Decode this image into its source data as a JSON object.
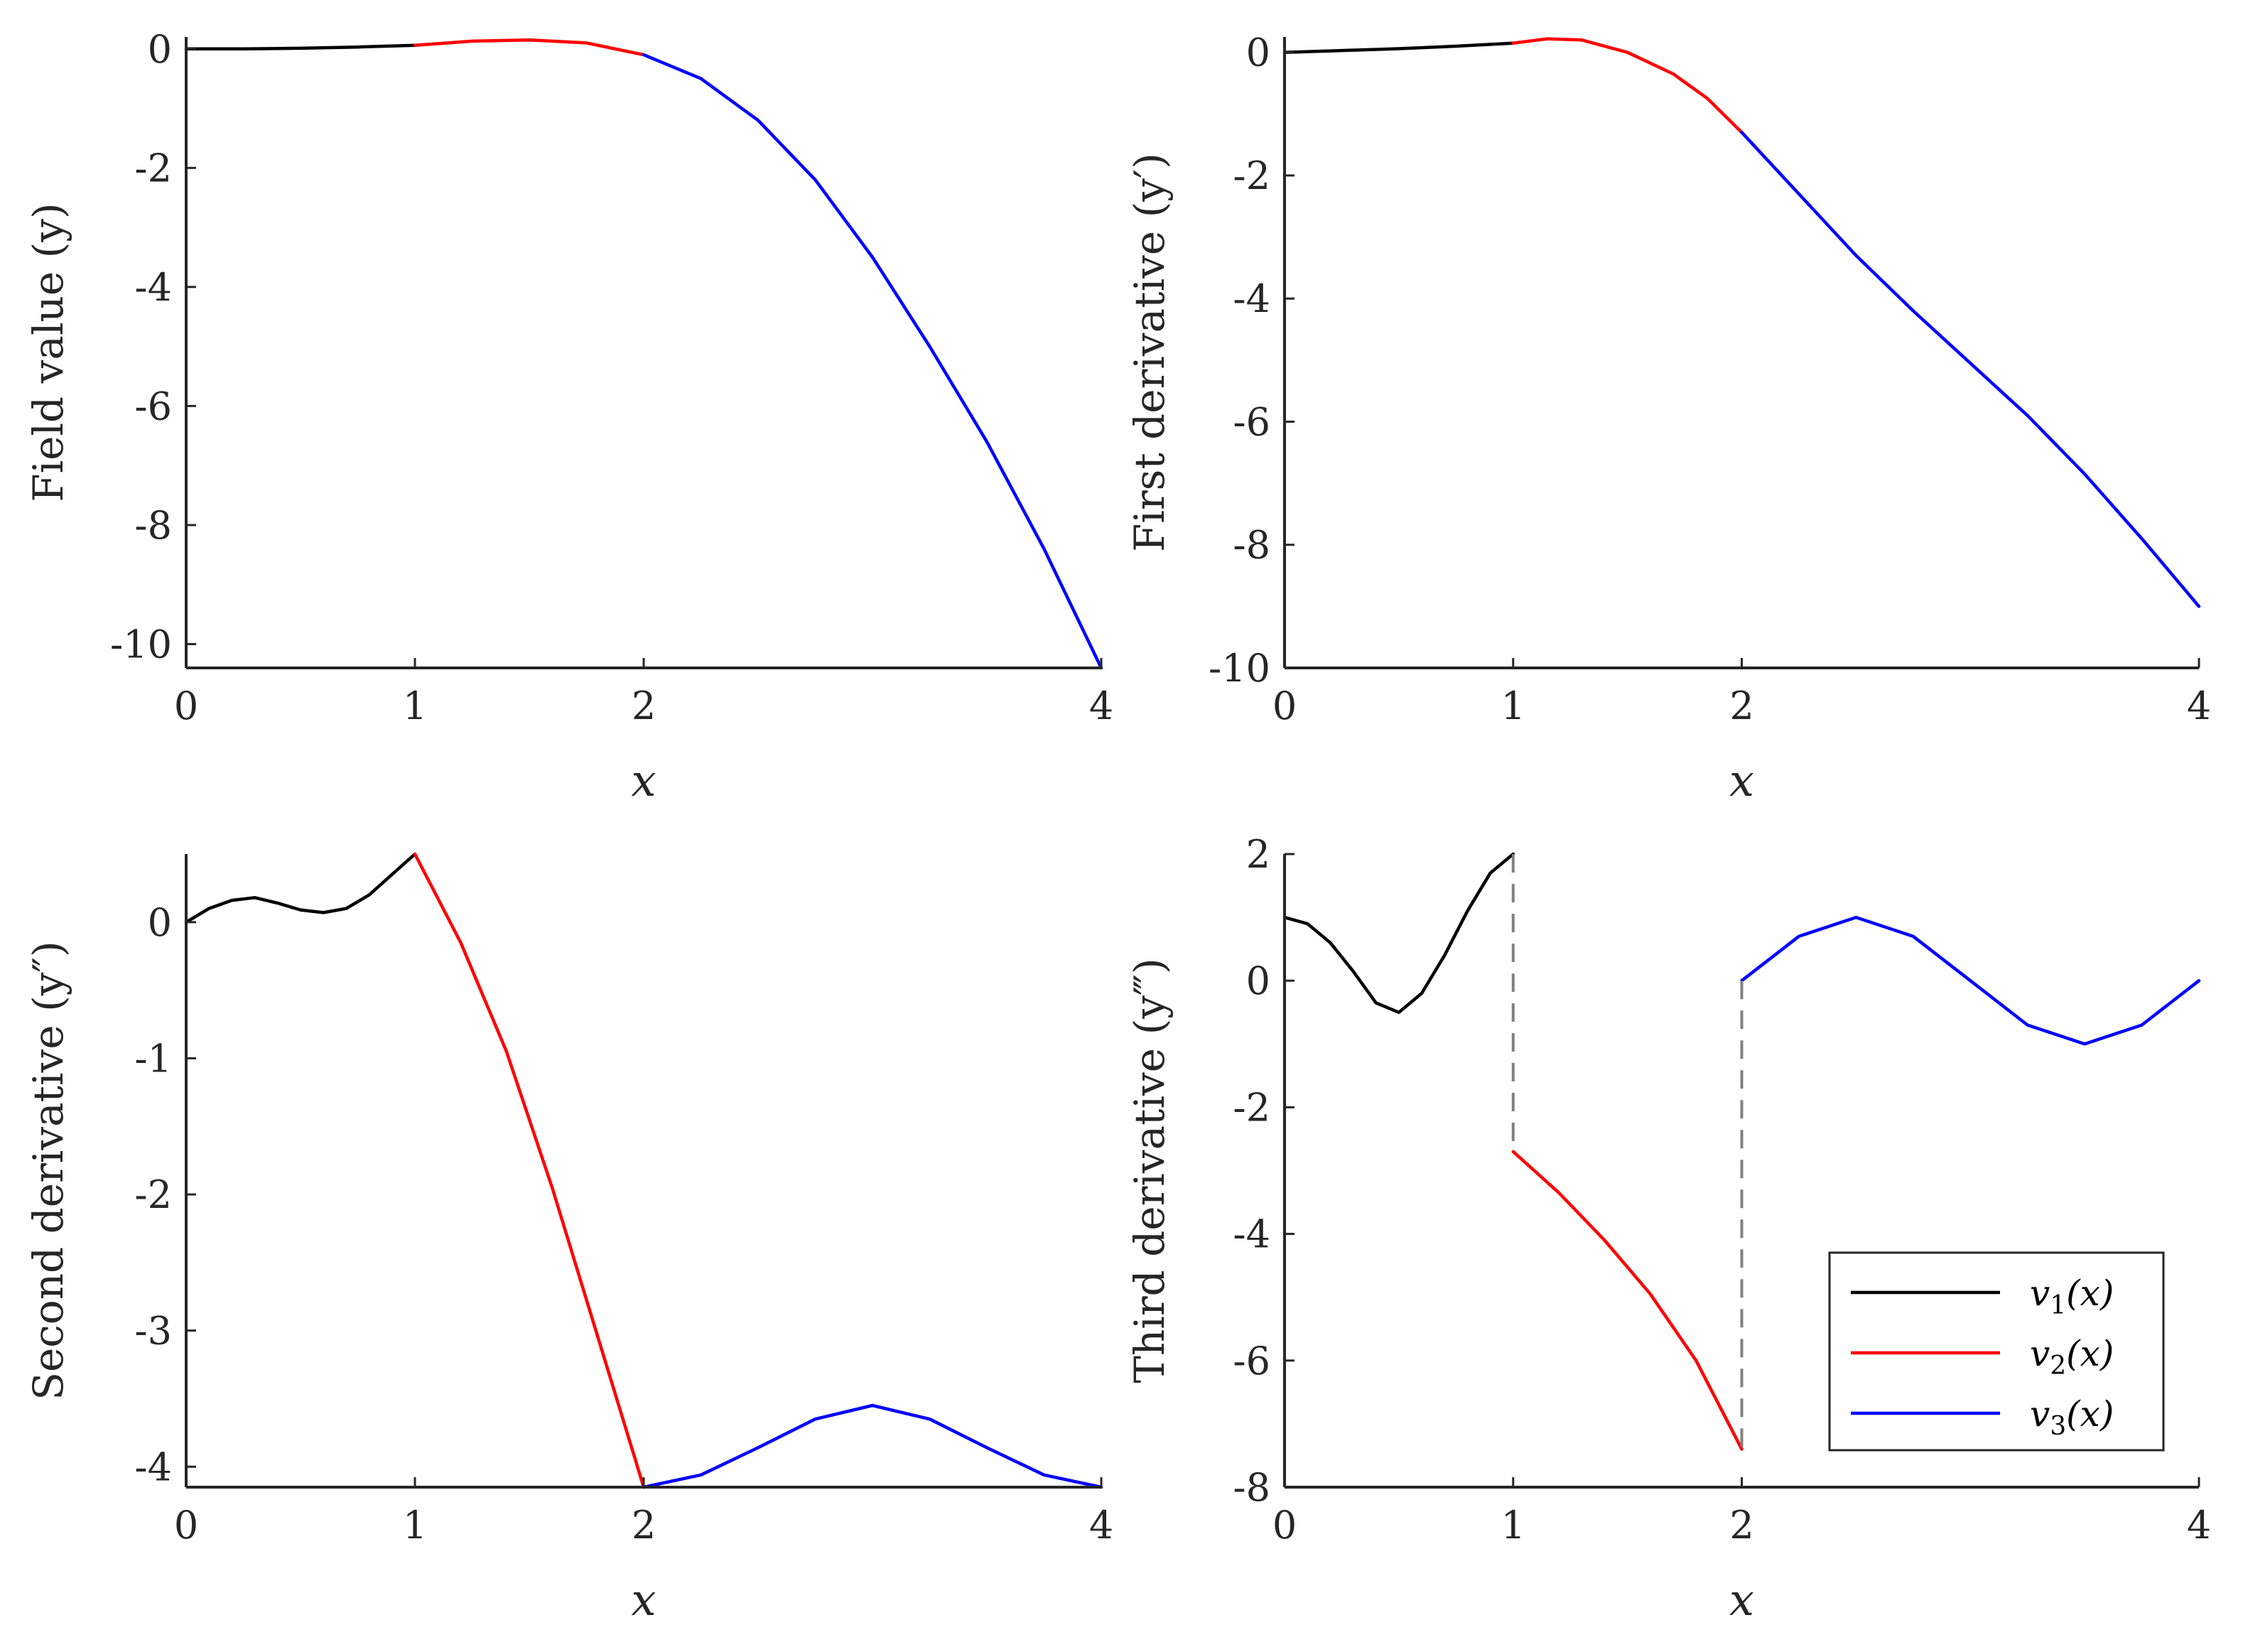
{
  "chart_data": [
    {
      "type": "line",
      "panel": "top-left",
      "xlabel": "x",
      "ylabel": "Field value (y)",
      "xlim": [
        0,
        4
      ],
      "ylim": [
        -10.4,
        0.2
      ],
      "xticks": [
        0,
        1,
        2,
        4
      ],
      "xtick_labels": [
        "0",
        "1",
        "2",
        "4"
      ],
      "yticks": [
        0,
        -2,
        -4,
        -6,
        -8,
        -10
      ],
      "ytick_labels": [
        "0",
        "-2",
        "-4",
        "-6",
        "-8",
        "-10"
      ],
      "series": [
        {
          "name": "v1(x)",
          "color": "#000000",
          "x": [
            0,
            0.25,
            0.5,
            0.75,
            1.0
          ],
          "y": [
            0,
            0.0,
            0.01,
            0.03,
            0.06
          ]
        },
        {
          "name": "v2(x)",
          "color": "#ff0000",
          "x": [
            1.0,
            1.25,
            1.5,
            1.75,
            2.0
          ],
          "y": [
            0.06,
            0.13,
            0.15,
            0.1,
            -0.1
          ]
        },
        {
          "name": "v3(x)",
          "color": "#0000ff",
          "x": [
            2.0,
            2.25,
            2.5,
            2.75,
            3.0,
            3.25,
            3.5,
            3.75,
            4.0
          ],
          "y": [
            -0.1,
            -0.5,
            -1.2,
            -2.2,
            -3.5,
            -5.0,
            -6.6,
            -8.4,
            -10.4
          ]
        }
      ],
      "dashed_connectors": []
    },
    {
      "type": "line",
      "panel": "top-right",
      "xlabel": "x",
      "ylabel": "First derivative (y′)",
      "xlim": [
        0,
        4
      ],
      "ylim": [
        -10,
        0.25
      ],
      "xticks": [
        0,
        1,
        2,
        4
      ],
      "xtick_labels": [
        "0",
        "1",
        "2",
        "4"
      ],
      "yticks": [
        0,
        -2,
        -4,
        -6,
        -8,
        -10
      ],
      "ytick_labels": [
        "0",
        "-2",
        "-4",
        "-6",
        "-8",
        "-10"
      ],
      "series": [
        {
          "name": "v1(x)",
          "color": "#000000",
          "x": [
            0,
            0.25,
            0.5,
            0.75,
            1.0
          ],
          "y": [
            0,
            0.03,
            0.06,
            0.1,
            0.15
          ]
        },
        {
          "name": "v2(x)",
          "color": "#ff0000",
          "x": [
            1.0,
            1.15,
            1.3,
            1.5,
            1.7,
            1.85,
            2.0
          ],
          "y": [
            0.15,
            0.22,
            0.2,
            0.0,
            -0.35,
            -0.75,
            -1.3
          ]
        },
        {
          "name": "v3(x)",
          "color": "#0000ff",
          "x": [
            2.0,
            2.25,
            2.5,
            2.75,
            3.0,
            3.25,
            3.5,
            3.75,
            4.0
          ],
          "y": [
            -1.3,
            -2.3,
            -3.3,
            -4.2,
            -5.05,
            -5.9,
            -6.85,
            -7.9,
            -9.0
          ]
        }
      ],
      "dashed_connectors": []
    },
    {
      "type": "line",
      "panel": "bottom-left",
      "xlabel": "x",
      "ylabel": "Second derivative (y″)",
      "xlim": [
        0,
        4
      ],
      "ylim": [
        -4.15,
        0.5
      ],
      "xticks": [
        0,
        1,
        2,
        4
      ],
      "xtick_labels": [
        "0",
        "1",
        "2",
        "4"
      ],
      "yticks": [
        0,
        -1,
        -2,
        -3,
        -4
      ],
      "ytick_labels": [
        "0",
        "-1",
        "-2",
        "-3",
        "-4"
      ],
      "series": [
        {
          "name": "v1(x)",
          "color": "#000000",
          "x": [
            0,
            0.1,
            0.2,
            0.3,
            0.4,
            0.5,
            0.6,
            0.7,
            0.8,
            0.9,
            1.0
          ],
          "y": [
            0,
            0.1,
            0.16,
            0.18,
            0.14,
            0.09,
            0.07,
            0.1,
            0.2,
            0.35,
            0.5
          ]
        },
        {
          "name": "v2(x)",
          "color": "#ff0000",
          "x": [
            1.0,
            1.2,
            1.4,
            1.6,
            1.8,
            2.0
          ],
          "y": [
            0.5,
            -0.15,
            -0.95,
            -1.95,
            -3.05,
            -4.15
          ]
        },
        {
          "name": "v3(x)",
          "color": "#0000ff",
          "x": [
            2.0,
            2.25,
            2.5,
            2.75,
            3.0,
            3.25,
            3.5,
            3.75,
            4.0
          ],
          "y": [
            -4.15,
            -4.06,
            -3.86,
            -3.65,
            -3.55,
            -3.65,
            -3.86,
            -4.06,
            -4.15
          ]
        }
      ],
      "dashed_connectors": []
    },
    {
      "type": "line",
      "panel": "bottom-right",
      "xlabel": "x",
      "ylabel": "Third derivative (y‴)",
      "xlim": [
        0,
        4
      ],
      "ylim": [
        -8,
        2
      ],
      "xticks": [
        0,
        1,
        2,
        4
      ],
      "xtick_labels": [
        "0",
        "1",
        "2",
        "4"
      ],
      "yticks": [
        2,
        0,
        -2,
        -4,
        -6,
        -8
      ],
      "ytick_labels": [
        "2",
        "0",
        "-2",
        "-4",
        "-6",
        "-8"
      ],
      "series": [
        {
          "name": "v1(x)",
          "color": "#000000",
          "x": [
            0,
            0.1,
            0.2,
            0.3,
            0.4,
            0.5,
            0.6,
            0.7,
            0.8,
            0.9,
            1.0
          ],
          "y": [
            1.0,
            0.9,
            0.6,
            0.15,
            -0.35,
            -0.5,
            -0.2,
            0.4,
            1.1,
            1.7,
            2.0
          ]
        },
        {
          "name": "v2(x)",
          "color": "#ff0000",
          "x": [
            1.0,
            1.2,
            1.4,
            1.6,
            1.8,
            2.0
          ],
          "y": [
            -2.7,
            -3.35,
            -4.1,
            -4.95,
            -6.0,
            -7.4
          ]
        },
        {
          "name": "v3(x)",
          "color": "#0000ff",
          "x": [
            2.0,
            2.25,
            2.5,
            2.75,
            3.0,
            3.25,
            3.5,
            3.75,
            4.0
          ],
          "y": [
            0,
            0.7,
            1.0,
            0.7,
            0,
            -0.7,
            -1.0,
            -0.7,
            0
          ]
        }
      ],
      "dashed_connectors": [
        {
          "x": 1.0,
          "y_from": 2.0,
          "y_to": -2.7,
          "color": "#808080"
        },
        {
          "x": 2.0,
          "y_from": 0.0,
          "y_to": -7.4,
          "color": "#808080"
        }
      ]
    }
  ],
  "legend": {
    "placement": "bottom-right",
    "panel": "bottom-right",
    "entries": [
      {
        "label": "v",
        "sub": "1",
        "arg": "(x)",
        "color": "#000000"
      },
      {
        "label": "v",
        "sub": "2",
        "arg": "(x)",
        "color": "#ff0000"
      },
      {
        "label": "v",
        "sub": "3",
        "arg": "(x)",
        "color": "#0000ff"
      }
    ]
  }
}
